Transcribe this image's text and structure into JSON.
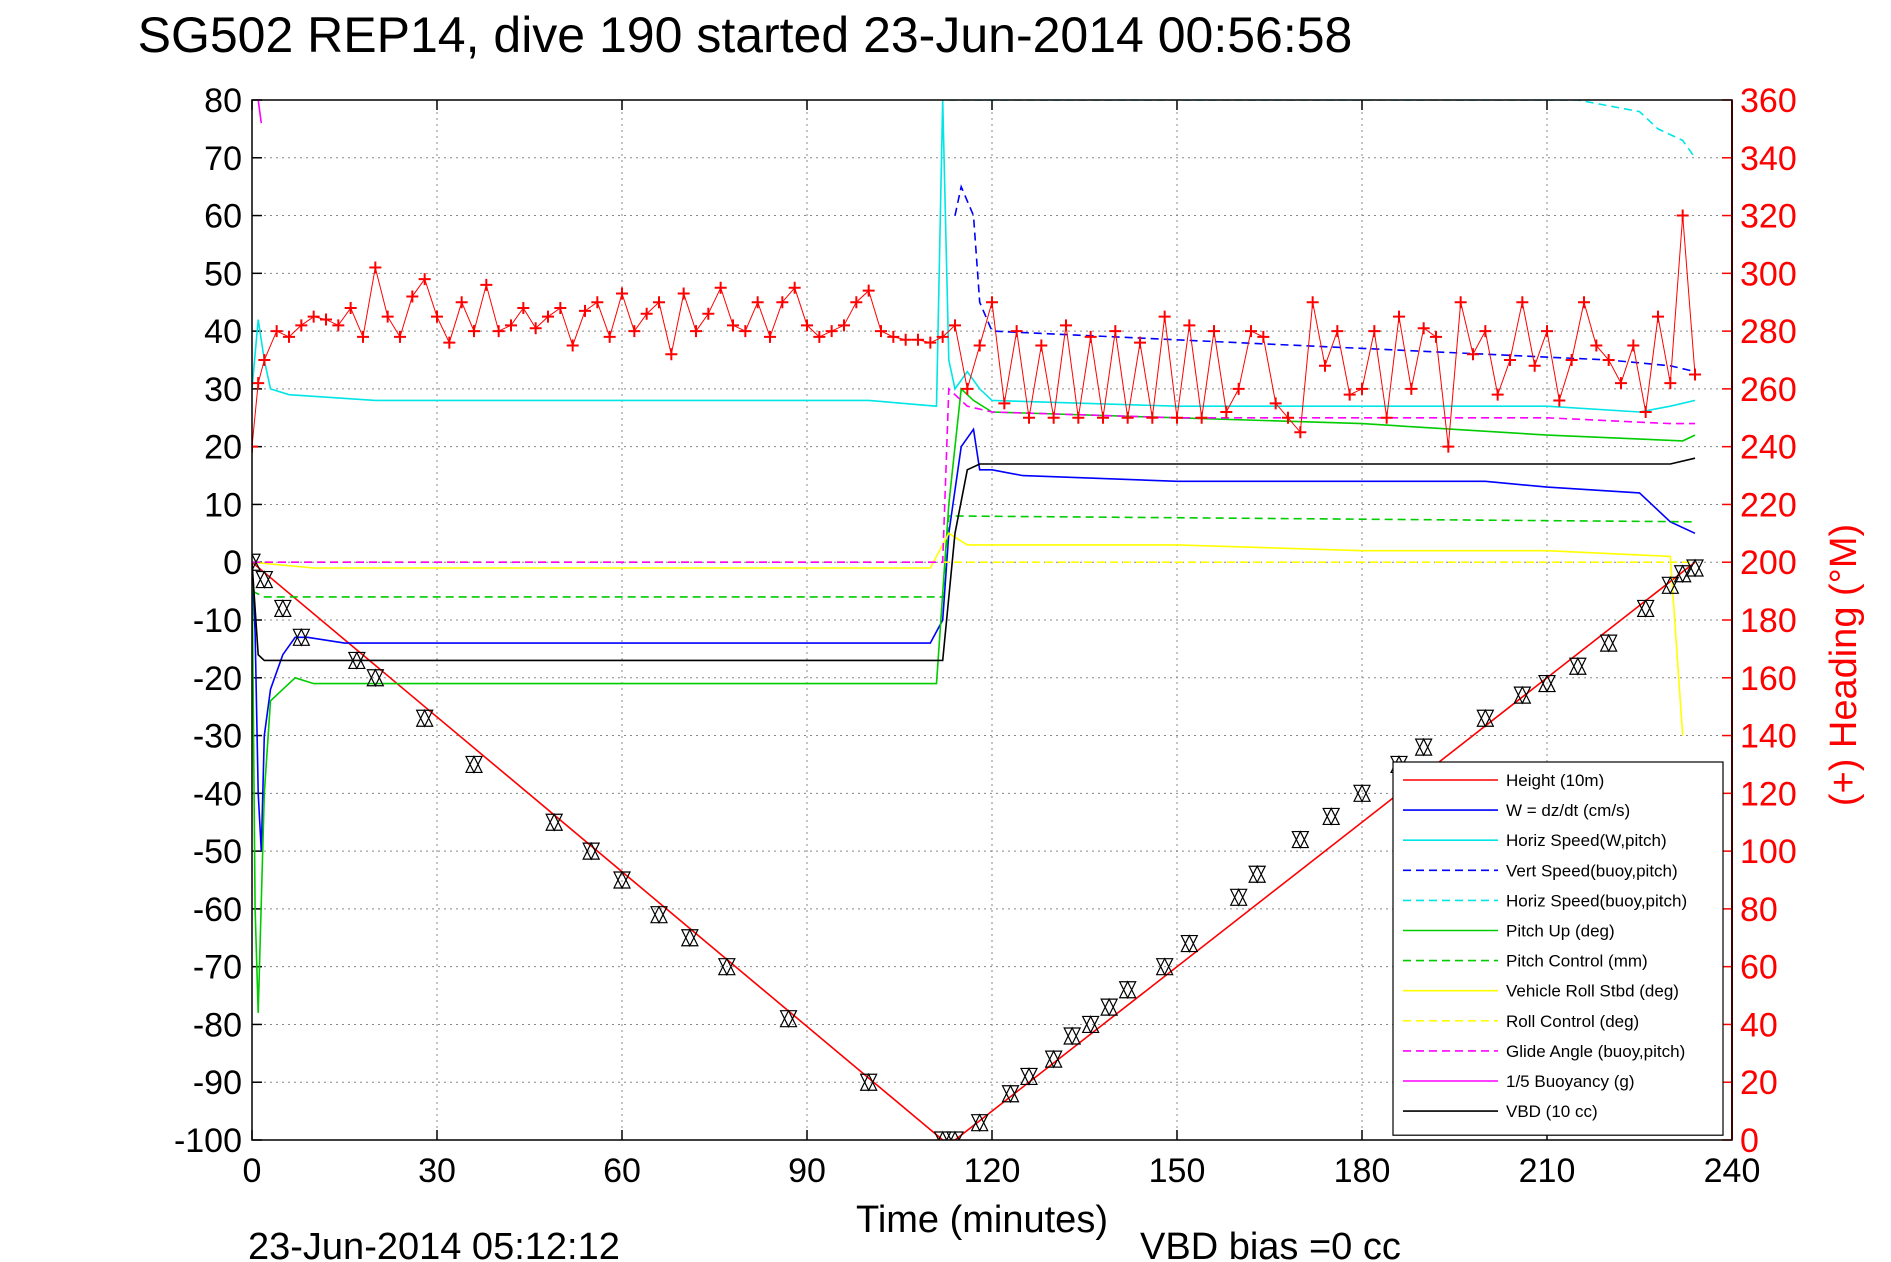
{
  "chart_data": {
    "type": "line",
    "title": "SG502 REP14, dive 190 started 23-Jun-2014 00:56:58",
    "xlabel": "Time (minutes)",
    "ylabel_right": "(+) Heading (°M)",
    "footer_left": "23-Jun-2014 05:12:12",
    "footer_right": "VBD bias =0 cc",
    "xlim": [
      0,
      240
    ],
    "ylim": [
      -100,
      80
    ],
    "ylim_right": [
      0,
      360
    ],
    "xticks": [
      "0",
      "30",
      "60",
      "90",
      "120",
      "150",
      "180",
      "210",
      "240"
    ],
    "yticks": [
      "80",
      "70",
      "60",
      "50",
      "40",
      "30",
      "20",
      "10",
      "0",
      "-10",
      "-20",
      "-30",
      "-40",
      "-50",
      "-60",
      "-70",
      "-80",
      "-90",
      "-100"
    ],
    "yticks_right": [
      "360",
      "340",
      "320",
      "300",
      "280",
      "260",
      "240",
      "220",
      "200",
      "180",
      "160",
      "140",
      "120",
      "100",
      "80",
      "60",
      "40",
      "20",
      "0"
    ],
    "grid": true,
    "legend_position": "bottom-right",
    "series": [
      {
        "name": "Height (10m)",
        "color": "#ff0000",
        "style": "solid",
        "x": [
          0,
          112,
          114,
          234
        ],
        "y": [
          0,
          -100,
          -100,
          0
        ]
      },
      {
        "name": "W = dz/dt (cm/s)",
        "color": "#0000ff",
        "style": "solid",
        "x": [
          0,
          0.5,
          1,
          1.5,
          2,
          3,
          5,
          7,
          9,
          15,
          30,
          60,
          90,
          110,
          112,
          113,
          115,
          117,
          118,
          120,
          125,
          150,
          180,
          200,
          210,
          225,
          230,
          234
        ],
        "y": [
          0,
          -12,
          -40,
          -50,
          -30,
          -22,
          -16,
          -13,
          -13,
          -14,
          -14,
          -14,
          -14,
          -14,
          -10,
          5,
          20,
          23,
          16,
          16,
          15,
          14,
          14,
          14,
          13,
          12,
          7,
          5
        ]
      },
      {
        "name": "Horiz Speed(W,pitch)",
        "color": "#00e5e5",
        "style": "solid",
        "x": [
          0,
          1,
          2,
          3,
          6,
          20,
          60,
          100,
          111,
          112,
          113,
          114,
          116,
          118,
          120,
          150,
          180,
          210,
          225,
          230,
          234
        ],
        "y": [
          30,
          42,
          35,
          30,
          29,
          28,
          28,
          28,
          27,
          80,
          35,
          30,
          33,
          30,
          28,
          27,
          27,
          27,
          26,
          27,
          28
        ]
      },
      {
        "name": "Vert Speed(buoy,pitch)",
        "color": "#0000ff",
        "style": "dashed",
        "x": [
          114,
          115,
          117,
          118,
          120,
          140,
          160,
          180,
          200,
          220,
          230,
          234
        ],
        "y": [
          60,
          65,
          60,
          45,
          40,
          39,
          38,
          37,
          36,
          35,
          34,
          33
        ]
      },
      {
        "name": "Horiz Speed(buoy,pitch)",
        "color": "#00e5e5",
        "style": "dashed",
        "x": [
          113,
          114,
          116,
          120,
          150,
          180,
          200,
          215,
          225,
          228,
          232,
          234
        ],
        "y": [
          80,
          80,
          80,
          80,
          80,
          80,
          80,
          80,
          78,
          75,
          73,
          70
        ]
      },
      {
        "name": "Pitch Up (deg)",
        "color": "#00cc00",
        "style": "solid",
        "x": [
          0,
          0.5,
          1,
          2,
          3,
          5,
          7,
          10,
          30,
          60,
          90,
          111,
          113,
          115,
          117,
          120,
          150,
          180,
          210,
          232,
          234
        ],
        "y": [
          0,
          -60,
          -78,
          -40,
          -24,
          -22,
          -20,
          -21,
          -21,
          -21,
          -21,
          -21,
          10,
          30,
          28,
          26,
          25,
          24,
          22,
          21,
          22
        ]
      },
      {
        "name": "Pitch Control (mm)",
        "color": "#00cc00",
        "style": "dashed",
        "x": [
          0,
          2,
          112,
          113,
          114,
          234
        ],
        "y": [
          -5,
          -6,
          -6,
          8,
          8,
          7
        ]
      },
      {
        "name": "Vehicle Roll Stbd (deg)",
        "color": "#ffff00",
        "style": "solid",
        "x": [
          0,
          10,
          30,
          60,
          90,
          110,
          113,
          116,
          120,
          150,
          180,
          210,
          230,
          232
        ],
        "y": [
          0,
          -1,
          -1,
          -1,
          -1,
          -1,
          5,
          3,
          3,
          3,
          2,
          2,
          1,
          -30
        ]
      },
      {
        "name": "Roll Control (deg)",
        "color": "#ffff00",
        "style": "dashed",
        "x": [
          0,
          112,
          113,
          114,
          234
        ],
        "y": [
          0,
          0,
          0,
          0,
          0
        ]
      },
      {
        "name": "Glide Angle (buoy,pitch)",
        "color": "#ff00ff",
        "style": "dashed",
        "x": [
          0,
          112,
          113,
          116,
          120,
          150,
          180,
          210,
          230,
          234
        ],
        "y": [
          0,
          0,
          30,
          27,
          26,
          25,
          25,
          25,
          24,
          24
        ]
      },
      {
        "name": "1/5 Buoyancy (g)",
        "color": "#ff00ff",
        "style": "solid",
        "x": [
          1,
          1.5
        ],
        "y": [
          80,
          76
        ]
      },
      {
        "name": "VBD (10 cc)",
        "color": "#000000",
        "style": "solid",
        "x": [
          0,
          1,
          2,
          111,
          112,
          114,
          116,
          118,
          230,
          234
        ],
        "y": [
          0,
          -16,
          -17,
          -17,
          -17,
          5,
          16,
          17,
          17,
          18
        ]
      }
    ],
    "heading_markers": {
      "symbol": "+",
      "color": "#ff0000",
      "axis": "right",
      "x": [
        0,
        1,
        2,
        4,
        6,
        8,
        10,
        12,
        14,
        16,
        18,
        20,
        22,
        24,
        26,
        28,
        30,
        32,
        34,
        36,
        38,
        40,
        42,
        44,
        46,
        48,
        50,
        52,
        54,
        56,
        58,
        60,
        62,
        64,
        66,
        68,
        70,
        72,
        74,
        76,
        78,
        80,
        82,
        84,
        86,
        88,
        90,
        92,
        94,
        96,
        98,
        100,
        102,
        104,
        106,
        108,
        110,
        112,
        114,
        116,
        118,
        120,
        122,
        124,
        126,
        128,
        130,
        132,
        134,
        136,
        138,
        140,
        142,
        144,
        146,
        148,
        150,
        152,
        154,
        156,
        158,
        160,
        162,
        164,
        166,
        168,
        170,
        172,
        174,
        176,
        178,
        180,
        182,
        184,
        186,
        188,
        190,
        192,
        194,
        196,
        198,
        200,
        202,
        204,
        206,
        208,
        210,
        212,
        214,
        216,
        218,
        220,
        222,
        224,
        226,
        228,
        230,
        232,
        234
      ],
      "y": [
        240,
        262,
        270,
        280,
        278,
        282,
        285,
        284,
        282,
        288,
        278,
        302,
        285,
        278,
        292,
        298,
        285,
        276,
        290,
        280,
        296,
        280,
        282,
        288,
        281,
        285,
        288,
        275,
        287,
        290,
        278,
        293,
        280,
        286,
        290,
        272,
        293,
        280,
        286,
        295,
        282,
        280,
        290,
        278,
        290,
        295,
        282,
        278,
        280,
        282,
        290,
        294,
        280,
        278,
        277,
        277,
        276,
        278,
        282,
        260,
        275,
        290,
        255,
        280,
        250,
        275,
        250,
        282,
        250,
        278,
        250,
        280,
        250,
        276,
        250,
        285,
        250,
        282,
        250,
        280,
        252,
        260,
        280,
        278,
        255,
        250,
        245,
        290,
        268,
        280,
        258,
        260,
        280,
        250,
        285,
        260,
        281,
        278,
        240,
        290,
        272,
        280,
        258,
        270,
        290,
        268,
        280,
        256,
        270,
        290,
        275,
        270,
        262,
        275,
        252,
        285,
        262,
        320,
        265
      ]
    },
    "height_markers": {
      "symbols": [
        "triangle-up",
        "triangle-down"
      ],
      "color": "#000000",
      "x": [
        0,
        2,
        5,
        8,
        17,
        20,
        28,
        36,
        49,
        55,
        60,
        66,
        71,
        77,
        87,
        100,
        112,
        114,
        118,
        123,
        126,
        130,
        133,
        136,
        139,
        142,
        148,
        152,
        160,
        163,
        170,
        175,
        180,
        186,
        190,
        200,
        206,
        210,
        215,
        220,
        226,
        230,
        232,
        234
      ],
      "y": [
        0,
        -3,
        -8,
        -13,
        -17,
        -20,
        -27,
        -35,
        -45,
        -50,
        -55,
        -61,
        -65,
        -70,
        -79,
        -90,
        -100,
        -100,
        -97,
        -92,
        -89,
        -86,
        -82,
        -80,
        -77,
        -74,
        -70,
        -66,
        -58,
        -54,
        -48,
        -44,
        -40,
        -35,
        -32,
        -27,
        -23,
        -21,
        -18,
        -14,
        -8,
        -4,
        -2,
        -1
      ]
    }
  }
}
